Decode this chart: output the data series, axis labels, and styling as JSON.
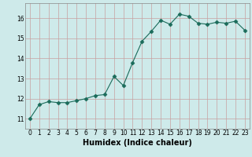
{
  "x": [
    0,
    1,
    2,
    3,
    4,
    5,
    6,
    7,
    8,
    9,
    10,
    11,
    12,
    13,
    14,
    15,
    16,
    17,
    18,
    19,
    20,
    21,
    22,
    23
  ],
  "y": [
    11.0,
    11.7,
    11.85,
    11.8,
    11.8,
    11.9,
    12.0,
    12.15,
    12.2,
    13.1,
    12.65,
    13.8,
    14.85,
    15.35,
    15.9,
    15.7,
    16.2,
    16.1,
    15.75,
    15.7,
    15.8,
    15.75,
    15.85,
    15.4
  ],
  "line_color": "#1a6b5a",
  "marker": "D",
  "marker_size": 2.5,
  "bg_color": "#ceeaea",
  "grid_color": "#c8a0a0",
  "xlabel": "Humidex (Indice chaleur)",
  "ylim": [
    10.5,
    16.75
  ],
  "xlim": [
    -0.5,
    23.5
  ],
  "yticks": [
    11,
    12,
    13,
    14,
    15,
    16
  ],
  "xticks": [
    0,
    1,
    2,
    3,
    4,
    5,
    6,
    7,
    8,
    9,
    10,
    11,
    12,
    13,
    14,
    15,
    16,
    17,
    18,
    19,
    20,
    21,
    22,
    23
  ],
  "tick_fontsize": 5.5,
  "xlabel_fontsize": 7.0
}
